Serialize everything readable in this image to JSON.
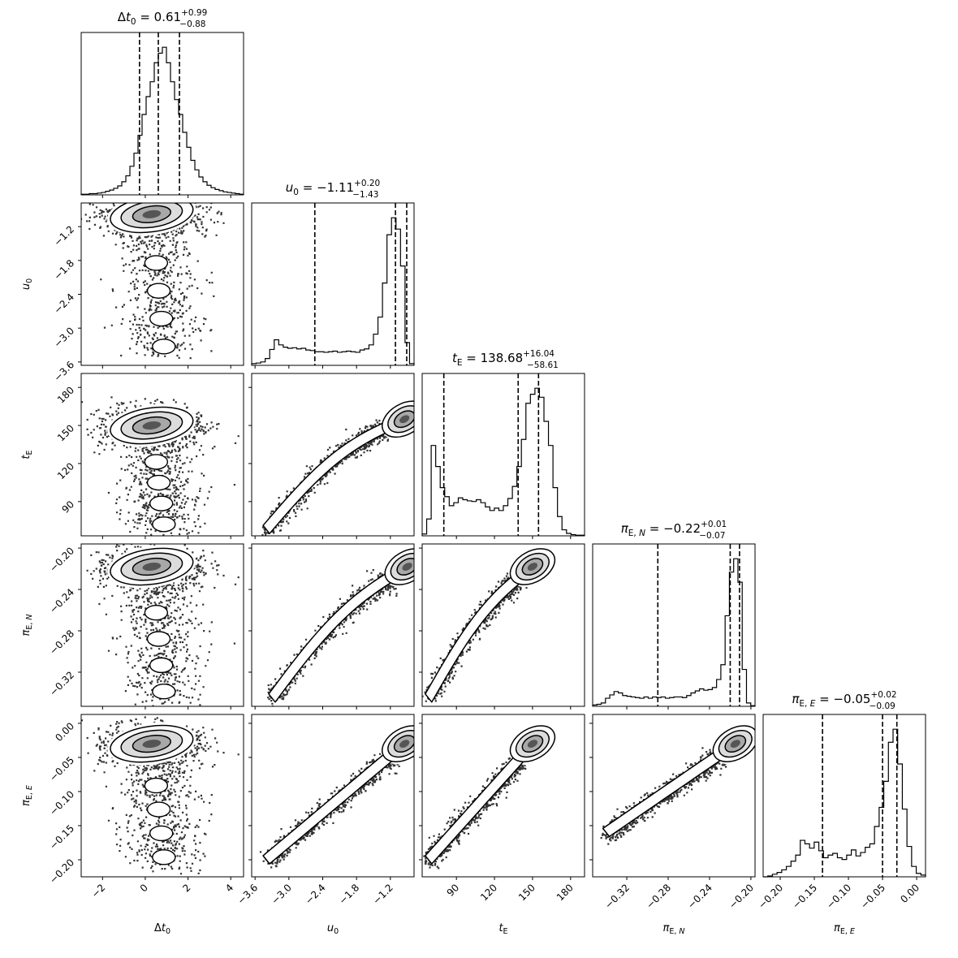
{
  "chart_data": {
    "type": "corner",
    "parameters": [
      {
        "key": "dt0",
        "label": "Δt₀",
        "range": [
          -3.0,
          4.6
        ],
        "ticks": [
          -2,
          0,
          2,
          4
        ],
        "tick_labels": [
          "−2",
          "0",
          "2",
          "4"
        ],
        "median": "0.61",
        "plus": "0.99",
        "minus": "0.88",
        "quantiles": [
          -0.27,
          0.61,
          1.6
        ]
      },
      {
        "key": "u0",
        "label": "u₀",
        "range": [
          -3.66,
          -0.78
        ],
        "ticks": [
          -3.6,
          -3.0,
          -2.4,
          -1.8,
          -1.2
        ],
        "tick_labels": [
          "−3.6",
          "−3.0",
          "−2.4",
          "−1.8",
          "−1.2"
        ],
        "median": "−1.11",
        "plus": "0.20",
        "minus": "1.43",
        "quantiles": [
          -2.54,
          -1.11,
          -0.91
        ]
      },
      {
        "key": "tE",
        "label": "t_E",
        "range": [
          63,
          191
        ],
        "ticks": [
          90,
          120,
          150,
          180
        ],
        "tick_labels": [
          "90",
          "120",
          "150",
          "180"
        ],
        "median": "138.68",
        "plus": "16.04",
        "minus": "58.61",
        "quantiles": [
          80.07,
          138.68,
          154.72
        ]
      },
      {
        "key": "piEN",
        "label": "π_E,N",
        "range": [
          -0.353,
          -0.196
        ],
        "ticks": [
          -0.32,
          -0.28,
          -0.24,
          -0.2
        ],
        "tick_labels": [
          "−0.32",
          "−0.28",
          "−0.24",
          "−0.20"
        ],
        "median": "−0.22",
        "plus": "0.01",
        "minus": "0.07",
        "quantiles": [
          -0.29,
          -0.22,
          -0.211
        ]
      },
      {
        "key": "piEE",
        "label": "π_E,E",
        "range": [
          -0.225,
          0.013
        ],
        "ticks": [
          -0.2,
          -0.15,
          -0.1,
          -0.05,
          0.0
        ],
        "tick_labels": [
          "−0.20",
          "−0.15",
          "−0.10",
          "−0.05",
          "0.00"
        ],
        "median": "−0.05",
        "plus": "0.02",
        "minus": "0.09",
        "quantiles": [
          -0.138,
          -0.05,
          -0.029
        ]
      }
    ],
    "histograms": [
      {
        "param": "dt0",
        "counts": [
          1,
          1,
          2,
          2,
          3,
          4,
          6,
          8,
          11,
          15,
          22,
          32,
          48,
          70,
          100,
          135,
          165,
          190,
          222,
          238,
          248,
          222,
          190,
          160,
          135,
          105,
          80,
          58,
          42,
          30,
          22,
          16,
          12,
          9,
          7,
          5,
          4,
          3,
          2,
          1
        ]
      },
      {
        "param": "u0",
        "counts": [
          3,
          4,
          6,
          12,
          28,
          45,
          36,
          32,
          30,
          31,
          29,
          30,
          27,
          26,
          24,
          24,
          23,
          24,
          25,
          23,
          24,
          25,
          24,
          23,
          27,
          29,
          36,
          55,
          85,
          145,
          230,
          260,
          240,
          175,
          40,
          3
        ]
      },
      {
        "param": "tE",
        "counts": [
          3,
          28,
          150,
          115,
          80,
          65,
          50,
          55,
          63,
          60,
          58,
          57,
          60,
          55,
          48,
          42,
          46,
          42,
          50,
          62,
          82,
          115,
          160,
          220,
          235,
          245,
          230,
          190,
          150,
          80,
          32,
          10,
          4,
          2,
          1,
          1
        ]
      },
      {
        "param": "piEN",
        "counts": [
          2,
          3,
          5,
          12,
          17,
          22,
          20,
          16,
          15,
          14,
          13,
          12,
          14,
          12,
          14,
          13,
          14,
          12,
          13,
          14,
          14,
          13,
          16,
          20,
          23,
          26,
          24,
          25,
          28,
          40,
          62,
          135,
          200,
          220,
          185,
          55,
          5,
          1
        ]
      },
      {
        "param": "piEE",
        "counts": [
          0,
          1,
          3,
          5,
          8,
          12,
          18,
          25,
          42,
          38,
          33,
          40,
          30,
          22,
          25,
          27,
          22,
          20,
          25,
          31,
          24,
          28,
          34,
          38,
          58,
          80,
          110,
          155,
          170,
          130,
          78,
          35,
          12,
          4,
          2
        ]
      }
    ],
    "scatter_2d": [
      {
        "x": "dt0",
        "y": "u0",
        "peak": [
          0.3,
          -0.98
        ],
        "tail_to": [
          0.9,
          -3.45
        ],
        "shape": "bimodal-vertical"
      },
      {
        "x": "dt0",
        "y": "tE",
        "peak": [
          0.3,
          150
        ],
        "tail_to": [
          0.9,
          68
        ],
        "shape": "bimodal-vertical"
      },
      {
        "x": "dt0",
        "y": "piEN",
        "peak": [
          0.3,
          -0.218
        ],
        "tail_to": [
          0.9,
          -0.345
        ],
        "shape": "bimodal-vertical"
      },
      {
        "x": "dt0",
        "y": "piEE",
        "peak": [
          0.3,
          -0.03
        ],
        "tail_to": [
          0.9,
          -0.205
        ],
        "shape": "bimodal-vertical"
      },
      {
        "x": "u0",
        "y": "tE",
        "peak": [
          -0.95,
          155
        ],
        "tail_to": [
          -3.4,
          68
        ],
        "shape": "curved-ridge"
      },
      {
        "x": "u0",
        "y": "piEN",
        "peak": [
          -0.9,
          -0.218
        ],
        "tail_to": [
          -3.3,
          -0.345
        ],
        "shape": "curved-ridge"
      },
      {
        "x": "u0",
        "y": "piEE",
        "peak": [
          -0.95,
          -0.03
        ],
        "tail_to": [
          -3.4,
          -0.2
        ],
        "shape": "linear-ridge"
      },
      {
        "x": "tE",
        "y": "piEN",
        "peak": [
          150,
          -0.218
        ],
        "tail_to": [
          68,
          -0.345
        ],
        "shape": "curved-ridge"
      },
      {
        "x": "tE",
        "y": "piEE",
        "peak": [
          150,
          -0.03
        ],
        "tail_to": [
          68,
          -0.2
        ],
        "shape": "linear-ridge"
      },
      {
        "x": "piEN",
        "y": "piEE",
        "peak": [
          -0.215,
          -0.03
        ],
        "tail_to": [
          -0.34,
          -0.16
        ],
        "shape": "linear-ridge"
      }
    ]
  }
}
